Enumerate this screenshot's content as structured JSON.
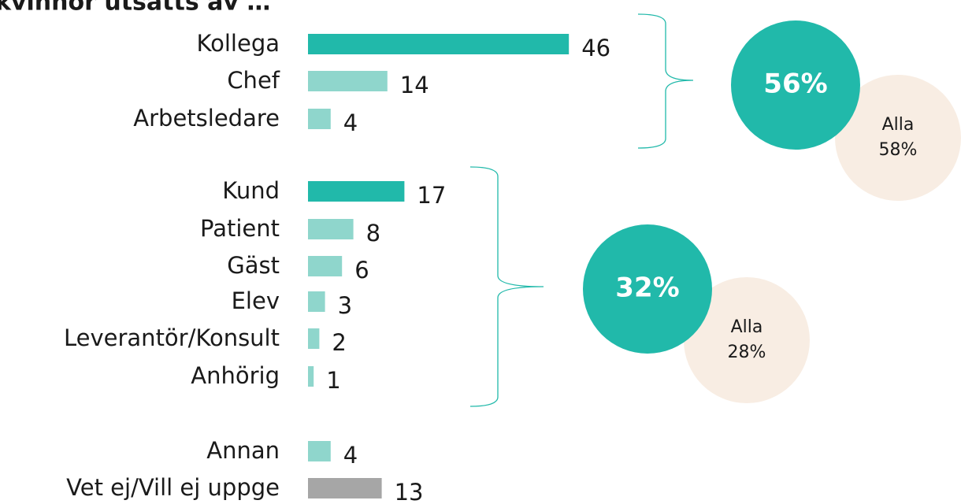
{
  "chart_data": {
    "type": "bar",
    "title": "kvinnor utsatts av …",
    "categories": [
      "Kollega",
      "Chef",
      "Arbetsledare",
      "Kund",
      "Patient",
      "Gäst",
      "Elev",
      "Leverantör/Konsult",
      "Anhörig",
      "Annan",
      "Vet ej/Vill ej uppge"
    ],
    "values": [
      46,
      14,
      4,
      17,
      8,
      6,
      3,
      2,
      1,
      4,
      13
    ],
    "colors": [
      "#21b9aa",
      "#8fd6cc",
      "#8fd6cc",
      "#21b9aa",
      "#8fd6cc",
      "#8fd6cc",
      "#8fd6cc",
      "#8fd6cc",
      "#8fd6cc",
      "#8fd6cc",
      "#a6a6a6"
    ],
    "summaries": [
      {
        "value": 56,
        "value_label": "56%",
        "reference_name": "Alla",
        "reference_value": 58,
        "reference_label": "58%"
      },
      {
        "value": 32,
        "value_label": "32%",
        "reference_name": "Alla",
        "reference_value": 28,
        "reference_label": "28%"
      }
    ]
  }
}
